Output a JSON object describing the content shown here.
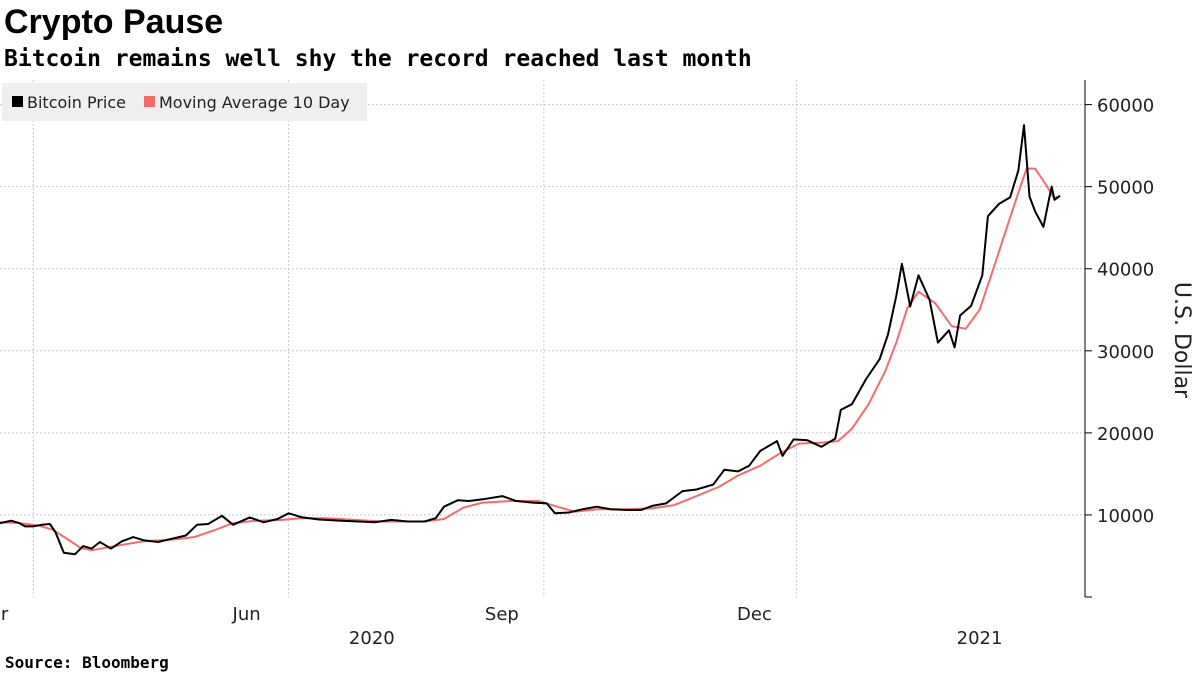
{
  "title": "Crypto Pause",
  "subtitle": "Bitcoin remains well shy the record reached last month",
  "source": "Source: Bloomberg",
  "chart_data": {
    "type": "line",
    "ylabel": "U.S. Dollar",
    "y_axis_side": "right",
    "ylim": [
      0,
      63000
    ],
    "yticks": [
      10000,
      20000,
      30000,
      40000,
      50000,
      60000
    ],
    "xlim": [
      "2020-02-18",
      "2021-03-15"
    ],
    "grid": true,
    "legend": "top-left",
    "x_month_ticks": [
      {
        "date": "2020-03-01",
        "label": "Mar"
      },
      {
        "date": "2020-06-01",
        "label": "Jun"
      },
      {
        "date": "2020-09-01",
        "label": "Sep"
      },
      {
        "date": "2020-12-01",
        "label": "Dec"
      }
    ],
    "x_year_labels": [
      {
        "date": "2020-07-01",
        "label": "2020"
      },
      {
        "date": "2021-02-05",
        "label": "2021"
      }
    ],
    "series": [
      {
        "name": "Bitcoin Price",
        "color": "#000000",
        "points": [
          [
            "2020-02-18",
            9000
          ],
          [
            "2020-02-22",
            9300
          ],
          [
            "2020-02-25",
            9000
          ],
          [
            "2020-02-27",
            8600
          ],
          [
            "2020-03-01",
            8600
          ],
          [
            "2020-03-04",
            8800
          ],
          [
            "2020-03-07",
            8900
          ],
          [
            "2020-03-09",
            7900
          ],
          [
            "2020-03-12",
            5400
          ],
          [
            "2020-03-16",
            5200
          ],
          [
            "2020-03-19",
            6200
          ],
          [
            "2020-03-22",
            5900
          ],
          [
            "2020-03-25",
            6700
          ],
          [
            "2020-03-29",
            5900
          ],
          [
            "2020-04-02",
            6800
          ],
          [
            "2020-04-06",
            7300
          ],
          [
            "2020-04-10",
            6900
          ],
          [
            "2020-04-15",
            6700
          ],
          [
            "2020-04-20",
            7100
          ],
          [
            "2020-04-25",
            7500
          ],
          [
            "2020-04-29",
            8800
          ],
          [
            "2020-05-03",
            8900
          ],
          [
            "2020-05-08",
            9900
          ],
          [
            "2020-05-12",
            8800
          ],
          [
            "2020-05-18",
            9700
          ],
          [
            "2020-05-23",
            9100
          ],
          [
            "2020-05-28",
            9500
          ],
          [
            "2020-06-01",
            10200
          ],
          [
            "2020-06-06",
            9700
          ],
          [
            "2020-06-12",
            9450
          ],
          [
            "2020-06-20",
            9300
          ],
          [
            "2020-06-26",
            9200
          ],
          [
            "2020-07-02",
            9100
          ],
          [
            "2020-07-08",
            9400
          ],
          [
            "2020-07-14",
            9200
          ],
          [
            "2020-07-20",
            9200
          ],
          [
            "2020-07-24",
            9600
          ],
          [
            "2020-07-27",
            11000
          ],
          [
            "2020-08-01",
            11800
          ],
          [
            "2020-08-05",
            11700
          ],
          [
            "2020-08-10",
            11900
          ],
          [
            "2020-08-17",
            12300
          ],
          [
            "2020-08-22",
            11700
          ],
          [
            "2020-08-28",
            11500
          ],
          [
            "2020-09-02",
            11400
          ],
          [
            "2020-09-05",
            10200
          ],
          [
            "2020-09-10",
            10300
          ],
          [
            "2020-09-15",
            10700
          ],
          [
            "2020-09-20",
            11000
          ],
          [
            "2020-09-25",
            10700
          ],
          [
            "2020-10-01",
            10600
          ],
          [
            "2020-10-06",
            10600
          ],
          [
            "2020-10-10",
            11100
          ],
          [
            "2020-10-15",
            11400
          ],
          [
            "2020-10-21",
            12900
          ],
          [
            "2020-10-26",
            13100
          ],
          [
            "2020-11-01",
            13700
          ],
          [
            "2020-11-05",
            15500
          ],
          [
            "2020-11-10",
            15300
          ],
          [
            "2020-11-14",
            16000
          ],
          [
            "2020-11-18",
            17800
          ],
          [
            "2020-11-24",
            19000
          ],
          [
            "2020-11-26",
            17200
          ],
          [
            "2020-11-30",
            19200
          ],
          [
            "2020-12-05",
            19100
          ],
          [
            "2020-12-10",
            18300
          ],
          [
            "2020-12-15",
            19300
          ],
          [
            "2020-12-17",
            22800
          ],
          [
            "2020-12-21",
            23500
          ],
          [
            "2020-12-26",
            26500
          ],
          [
            "2020-12-31",
            29000
          ],
          [
            "2021-01-03",
            32000
          ],
          [
            "2021-01-06",
            36700
          ],
          [
            "2021-01-08",
            40600
          ],
          [
            "2021-01-11",
            35400
          ],
          [
            "2021-01-14",
            39200
          ],
          [
            "2021-01-18",
            36200
          ],
          [
            "2021-01-21",
            31000
          ],
          [
            "2021-01-25",
            32500
          ],
          [
            "2021-01-27",
            30400
          ],
          [
            "2021-01-29",
            34300
          ],
          [
            "2021-02-02",
            35500
          ],
          [
            "2021-02-06",
            39200
          ],
          [
            "2021-02-08",
            46400
          ],
          [
            "2021-02-12",
            47900
          ],
          [
            "2021-02-16",
            48700
          ],
          [
            "2021-02-19",
            52000
          ],
          [
            "2021-02-21",
            57500
          ],
          [
            "2021-02-23",
            48800
          ],
          [
            "2021-02-25",
            47000
          ],
          [
            "2021-02-28",
            45100
          ],
          [
            "2021-03-02",
            48400
          ],
          [
            "2021-03-03",
            50000
          ],
          [
            "2021-03-04",
            48400
          ],
          [
            "2021-03-06",
            48900
          ]
        ]
      },
      {
        "name": "Moving Average 10 Day",
        "color": "#f46b6b",
        "points": [
          [
            "2020-02-18",
            9100
          ],
          [
            "2020-02-25",
            9000
          ],
          [
            "2020-03-03",
            8700
          ],
          [
            "2020-03-08",
            8200
          ],
          [
            "2020-03-14",
            6900
          ],
          [
            "2020-03-18",
            6000
          ],
          [
            "2020-03-22",
            5700
          ],
          [
            "2020-03-27",
            6000
          ],
          [
            "2020-04-01",
            6300
          ],
          [
            "2020-04-10",
            6800
          ],
          [
            "2020-04-20",
            7000
          ],
          [
            "2020-04-28",
            7300
          ],
          [
            "2020-05-05",
            8100
          ],
          [
            "2020-05-12",
            9000
          ],
          [
            "2020-05-20",
            9300
          ],
          [
            "2020-05-30",
            9400
          ],
          [
            "2020-06-05",
            9600
          ],
          [
            "2020-06-15",
            9600
          ],
          [
            "2020-06-25",
            9400
          ],
          [
            "2020-07-05",
            9200
          ],
          [
            "2020-07-20",
            9200
          ],
          [
            "2020-07-27",
            9500
          ],
          [
            "2020-08-03",
            10900
          ],
          [
            "2020-08-10",
            11500
          ],
          [
            "2020-08-20",
            11700
          ],
          [
            "2020-08-30",
            11700
          ],
          [
            "2020-09-05",
            11100
          ],
          [
            "2020-09-12",
            10400
          ],
          [
            "2020-09-20",
            10700
          ],
          [
            "2020-09-30",
            10700
          ],
          [
            "2020-10-10",
            10800
          ],
          [
            "2020-10-18",
            11200
          ],
          [
            "2020-10-26",
            12300
          ],
          [
            "2020-11-03",
            13400
          ],
          [
            "2020-11-10",
            14800
          ],
          [
            "2020-11-18",
            16000
          ],
          [
            "2020-11-25",
            17500
          ],
          [
            "2020-12-02",
            18700
          ],
          [
            "2020-12-10",
            18800
          ],
          [
            "2020-12-16",
            19000
          ],
          [
            "2020-12-21",
            20500
          ],
          [
            "2020-12-27",
            23500
          ],
          [
            "2021-01-02",
            27500
          ],
          [
            "2021-01-06",
            31000
          ],
          [
            "2021-01-10",
            35200
          ],
          [
            "2021-01-14",
            37200
          ],
          [
            "2021-01-20",
            35800
          ],
          [
            "2021-01-26",
            33000
          ],
          [
            "2021-01-31",
            32700
          ],
          [
            "2021-02-05",
            35000
          ],
          [
            "2021-02-10",
            40000
          ],
          [
            "2021-02-15",
            45200
          ],
          [
            "2021-02-20",
            50300
          ],
          [
            "2021-02-22",
            52200
          ],
          [
            "2021-02-25",
            52200
          ],
          [
            "2021-03-01",
            50200
          ],
          [
            "2021-03-04",
            48500
          ],
          [
            "2021-03-05",
            48800
          ]
        ]
      }
    ]
  }
}
